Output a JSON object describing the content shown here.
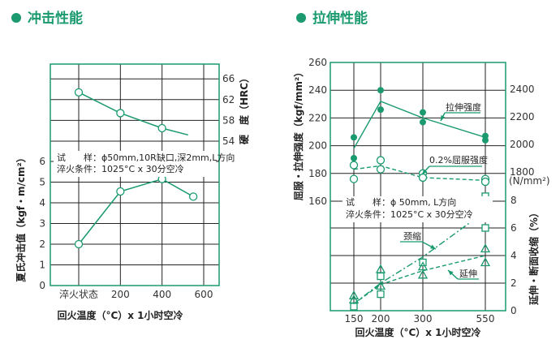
{
  "colors": {
    "accent": "#1a9a6e",
    "grid": "#222222"
  },
  "headers": {
    "impact": "冲击性能",
    "tensile": "拉伸性能"
  },
  "chart_data": [
    {
      "type": "line",
      "x_label": "回火温度（°C）x 1小时空冷",
      "x_ticks": [
        {
          "value": 0,
          "label": "淬火状态"
        },
        {
          "value": 200,
          "label": "200"
        },
        {
          "value": 400,
          "label": "400"
        },
        {
          "value": 600,
          "label": "600"
        }
      ],
      "xlim": [
        0,
        600
      ],
      "y_left": {
        "label": "夏氏冲击值（kgf・m/cm²）",
        "ticks": [
          "0",
          "1",
          "2",
          "3",
          "4",
          "5",
          "6"
        ],
        "ylim": [
          0,
          6.7
        ]
      },
      "y_right": {
        "label": "硬　度（HRC）",
        "ticks": [
          "54",
          "58",
          "62",
          "66"
        ]
      },
      "annotation": [
        "试　　样：ϕ50mm,10R缺口,深2mm,L方向",
        "淬火条件：1025°C x 30分空冷"
      ],
      "grid": true,
      "series": [
        {
          "axis": "right",
          "marker": "open-circle",
          "x": [
            0,
            200,
            400
          ],
          "y": [
            63.4,
            59.4,
            56.5
          ],
          "line_x": [
            0,
            200,
            400,
            525
          ],
          "line_y": [
            63.4,
            59.4,
            56.5,
            55.2
          ]
        },
        {
          "axis": "left",
          "marker": "open-circle",
          "x": [
            0,
            200,
            400,
            550
          ],
          "y": [
            2.0,
            4.55,
            5.15,
            4.3
          ],
          "line_x": [
            0,
            200,
            400,
            550
          ],
          "line_y": [
            2.0,
            4.55,
            5.15,
            4.3
          ]
        }
      ]
    },
    {
      "type": "scatter",
      "x_label": "回火温度（°C）x 1小时空冷",
      "categories": [
        "150",
        "200",
        "300",
        "550"
      ],
      "y_left": {
        "label": "屈服・拉伸强度（kgf/mm²）",
        "ticks": [
          "160",
          "180",
          "200",
          "220",
          "240",
          "260"
        ],
        "ylim": [
          160,
          260
        ]
      },
      "y_right_strength": {
        "ticks": [
          "1800",
          "2000",
          "2200",
          "2400"
        ],
        "unit": "(N/mm²)"
      },
      "y_right_percent": {
        "label": "延伸・断面收缩（%）",
        "ticks": [
          "0",
          "2",
          "4",
          "6",
          "8"
        ]
      },
      "annotation": [
        "试　　样：ϕ 50mm, L方向",
        "淬火条件：1025°C x 30分空冷"
      ],
      "grid": true,
      "series": [
        {
          "name": "拉伸强度",
          "axis": "left",
          "marker": "filled-circle",
          "points": [
            [
              0,
              206
            ],
            [
              0,
              191
            ],
            [
              1,
              240
            ],
            [
              1,
              226
            ],
            [
              2,
              224
            ],
            [
              2,
              217
            ],
            [
              3,
              207
            ],
            [
              3,
              204
            ]
          ],
          "line": [
            198,
            232,
            220,
            206
          ],
          "line_style": "solid"
        },
        {
          "name": "0.2%屈服强度",
          "axis": "left",
          "marker": "open-circle",
          "points": [
            [
              0,
              186
            ],
            [
              0,
              176
            ],
            [
              1,
              189.5
            ],
            [
              1,
              183
            ],
            [
              2,
              180
            ],
            [
              2,
              177
            ],
            [
              3,
              176
            ],
            [
              3,
              174
            ]
          ],
          "line": [
            183,
            185.5,
            177,
            175
          ],
          "line_style": "dashed"
        },
        {
          "name": "颈缩",
          "axis": "percent",
          "marker": "open-square",
          "points": [
            [
              0,
              0.3
            ],
            [
              1,
              2.5
            ],
            [
              1,
              1.2
            ],
            [
              2,
              3.5
            ],
            [
              3,
              8.3
            ],
            [
              3,
              6.0
            ]
          ],
          "line": [
            0.5,
            2.0,
            3.9,
            7.2
          ],
          "line_style": "dashdot"
        },
        {
          "name": "延伸",
          "axis": "percent",
          "marker": "open-triangle",
          "points": [
            [
              0,
              1.1
            ],
            [
              0,
              0.8
            ],
            [
              1,
              3.0
            ],
            [
              1,
              1.8
            ],
            [
              2,
              3.2
            ],
            [
              2,
              2.6
            ],
            [
              3,
              4.5
            ],
            [
              3,
              3.5
            ]
          ],
          "line": [
            0.5,
            1.9,
            2.9,
            4.0
          ],
          "line_style": "dashed"
        }
      ]
    }
  ]
}
